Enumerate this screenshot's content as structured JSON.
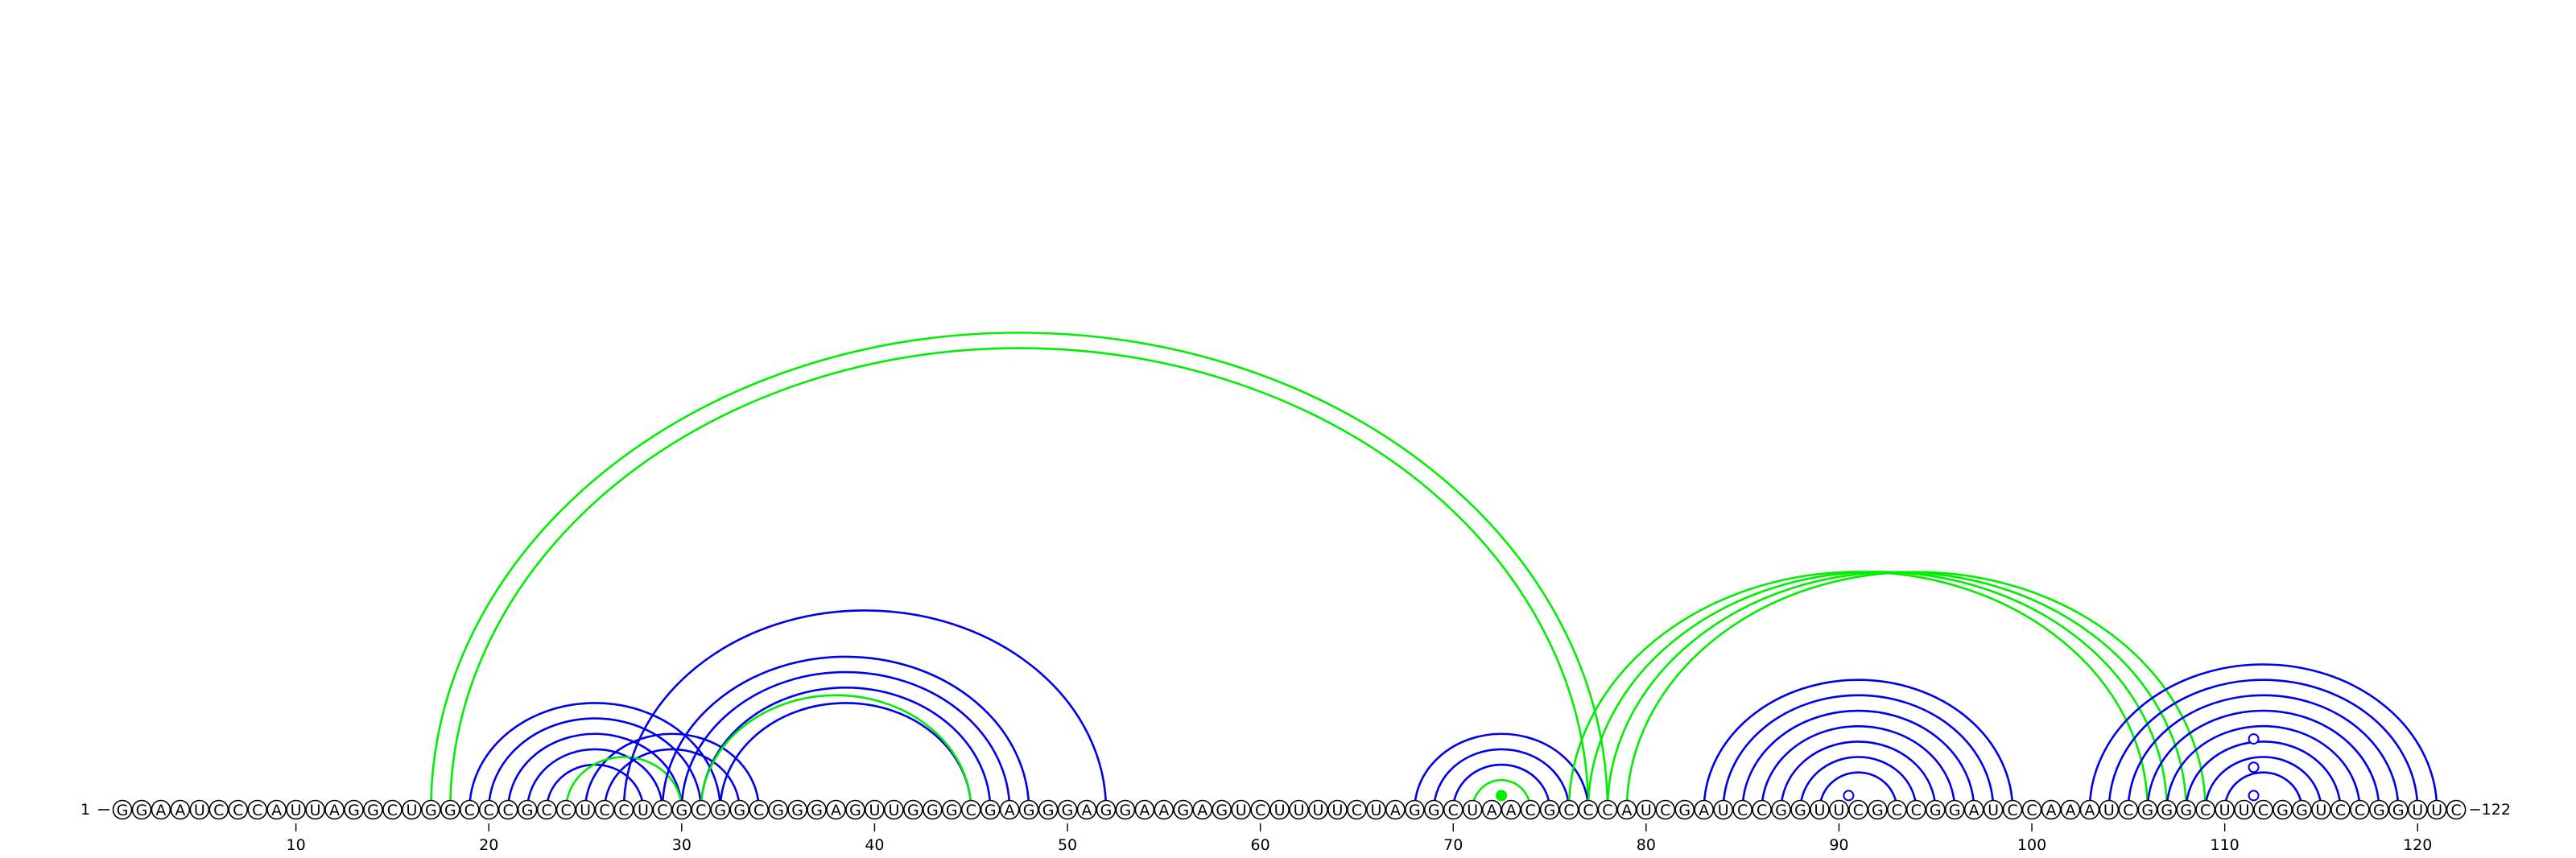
{
  "diagram": {
    "sequence": "GGAAUCCCAUUAGGCUGGCCCGCCUCCUCGCGGCGGGAGUUGGGCGAGGGAGGAAGAGUCUUUUCUAGGCUAACGCCCAUCGAUCCGGUUCGCCGGAUCCAAAUCGGGCUUCGGUCCGGUUC",
    "start_label": "1",
    "end_label": "122",
    "ticks": [
      10,
      20,
      30,
      40,
      50,
      60,
      70,
      80,
      90,
      100,
      110,
      120
    ],
    "colors": {
      "helix_blue": "#0000ee",
      "helix_green": "#00ee00",
      "circle_stroke": "#000000",
      "circle_fill": "#ffffff",
      "text": "#000000"
    },
    "helices": [
      {
        "color": "green",
        "pairs": [
          [
            17,
            78
          ],
          [
            18,
            77
          ]
        ]
      },
      {
        "color": "blue",
        "pairs": [
          [
            19,
            32
          ],
          [
            20,
            31
          ],
          [
            21,
            30
          ],
          [
            22,
            29
          ],
          [
            23,
            28
          ]
        ]
      },
      {
        "color": "blue",
        "pairs": [
          [
            25,
            34
          ],
          [
            26,
            33
          ]
        ]
      },
      {
        "color": "green",
        "pairs": [
          [
            24,
            30
          ]
        ]
      },
      {
        "color": "blue",
        "pairs": [
          [
            27,
            52
          ],
          [
            29,
            48
          ],
          [
            30,
            47
          ],
          [
            31,
            46
          ],
          [
            32,
            45
          ]
        ]
      },
      {
        "color": "green",
        "pairs": [
          [
            31,
            45
          ]
        ]
      },
      {
        "color": "blue",
        "pairs": [
          [
            68,
            77
          ],
          [
            69,
            76
          ],
          [
            70,
            75
          ]
        ]
      },
      {
        "color": "green",
        "pairs": [
          [
            71,
            74
          ]
        ]
      },
      {
        "color": "green",
        "pairs": [
          [
            76,
            106
          ],
          [
            77,
            107
          ],
          [
            78,
            108
          ],
          [
            79,
            109
          ]
        ]
      },
      {
        "color": "blue",
        "pairs": [
          [
            83,
            99
          ],
          [
            84,
            98
          ],
          [
            85,
            97
          ],
          [
            86,
            96
          ],
          [
            87,
            95
          ],
          [
            88,
            94
          ],
          [
            89,
            93
          ]
        ]
      },
      {
        "color": "blue",
        "pairs": [
          [
            103,
            121
          ],
          [
            104,
            120
          ],
          [
            105,
            119
          ],
          [
            106,
            118
          ],
          [
            107,
            117
          ],
          [
            108,
            116
          ],
          [
            109,
            115
          ],
          [
            110,
            114
          ]
        ]
      }
    ],
    "loop_markers": [
      {
        "position": 90.5,
        "color": "blue",
        "filled": false,
        "level": 1
      },
      {
        "position": 72.5,
        "color": "green",
        "filled": true,
        "level": 1
      },
      {
        "position": 111.5,
        "color": "blue",
        "filled": false,
        "level": 1
      },
      {
        "position": 111.5,
        "color": "blue",
        "filled": false,
        "level": 2
      },
      {
        "position": 111.5,
        "color": "blue",
        "filled": false,
        "level": 3
      }
    ]
  }
}
